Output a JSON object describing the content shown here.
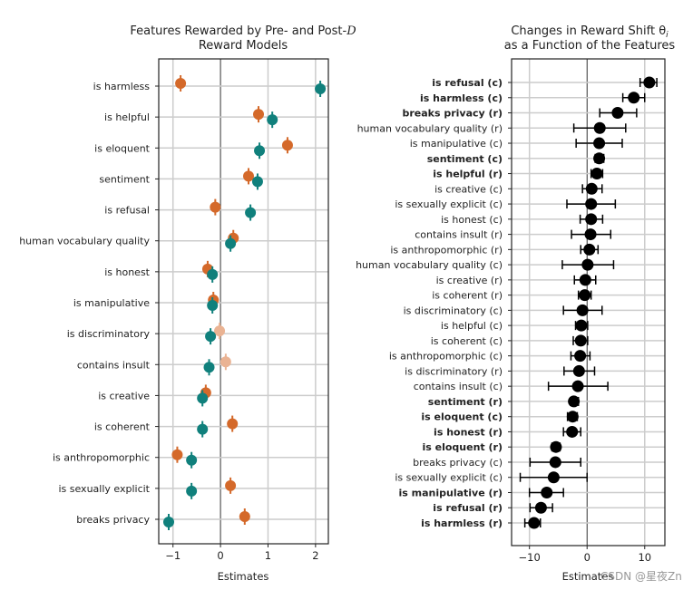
{
  "chart_data": [
    {
      "type": "scatter",
      "title_line1": "Features Rewarded by Pre- and Post-",
      "title_symbol": "D",
      "title_line2": "Reward Models",
      "xlabel": "Estimates",
      "xlim": [
        -1.3,
        2.27
      ],
      "xticks": [
        -1,
        0,
        1,
        2
      ],
      "xtick_labels": [
        "−1",
        "0",
        "1",
        "2"
      ],
      "grid": true,
      "colors": {
        "pre": "#d4692a",
        "post": "#10807c",
        "pre_insignificant": "#eab393"
      },
      "categories": [
        "is harmless",
        "is helpful",
        "is eloquent",
        "sentiment",
        "is refusal",
        "human vocabulary quality",
        "is honest",
        "is manipulative",
        "is discriminatory",
        "contains insult",
        "is creative",
        "is coherent",
        "is anthropomorphic",
        "is sexually explicit",
        "breaks privacy"
      ],
      "series": [
        {
          "color_key": "pre",
          "values": [
            -0.84,
            0.8,
            1.41,
            0.59,
            -0.11,
            0.27,
            -0.27,
            -0.15,
            -0.02,
            0.11,
            -0.31,
            0.25,
            -0.91,
            0.21,
            0.51
          ],
          "faded": [
            false,
            false,
            false,
            false,
            false,
            false,
            false,
            false,
            true,
            true,
            false,
            false,
            false,
            false,
            false
          ]
        },
        {
          "color_key": "post",
          "values": [
            2.1,
            1.09,
            0.82,
            0.78,
            0.63,
            0.21,
            -0.17,
            -0.17,
            -0.21,
            -0.24,
            -0.38,
            -0.38,
            -0.61,
            -0.61,
            -1.09
          ]
        }
      ]
    },
    {
      "type": "scatter",
      "title_line1": "Changes in Reward Shift θ",
      "title_sub": "i",
      "title_line2": "as a Function of the Features",
      "xlabel": "Estimates",
      "xlim": [
        -13.1,
        13.5
      ],
      "xticks": [
        -10,
        0,
        10
      ],
      "xtick_labels": [
        "−10",
        "0",
        "10"
      ],
      "grid": true,
      "color": "#000000",
      "points": [
        {
          "label": "is refusal (c)",
          "bold": true,
          "value": 10.8,
          "lo": 9.2,
          "hi": 12.1
        },
        {
          "label": "is harmless (c)",
          "bold": true,
          "value": 8.1,
          "lo": 6.2,
          "hi": 10.0
        },
        {
          "label": "breaks privacy (r)",
          "bold": true,
          "value": 5.3,
          "lo": 2.2,
          "hi": 8.6
        },
        {
          "label": "human vocabulary quality (r)",
          "bold": false,
          "value": 2.2,
          "lo": -2.3,
          "hi": 6.7
        },
        {
          "label": "is manipulative (c)",
          "bold": false,
          "value": 2.1,
          "lo": -1.9,
          "hi": 6.1
        },
        {
          "label": "sentiment (c)",
          "bold": true,
          "value": 2.1,
          "lo": 1.4,
          "hi": 2.9
        },
        {
          "label": "is helpful (r)",
          "bold": true,
          "value": 1.7,
          "lo": 0.7,
          "hi": 2.7
        },
        {
          "label": "is creative (c)",
          "bold": false,
          "value": 0.8,
          "lo": -0.8,
          "hi": 2.6
        },
        {
          "label": "is sexually explicit (c)",
          "bold": false,
          "value": 0.7,
          "lo": -3.5,
          "hi": 4.9
        },
        {
          "label": "is honest (c)",
          "bold": false,
          "value": 0.7,
          "lo": -1.2,
          "hi": 2.7
        },
        {
          "label": "contains insult (r)",
          "bold": false,
          "value": 0.6,
          "lo": -2.7,
          "hi": 4.1
        },
        {
          "label": "is anthropomorphic (r)",
          "bold": false,
          "value": 0.4,
          "lo": -1.1,
          "hi": 1.9
        },
        {
          "label": "human vocabulary quality (c)",
          "bold": false,
          "value": 0.1,
          "lo": -4.3,
          "hi": 4.6
        },
        {
          "label": "is creative (r)",
          "bold": false,
          "value": -0.3,
          "lo": -2.2,
          "hi": 1.5
        },
        {
          "label": "is coherent (r)",
          "bold": false,
          "value": -0.4,
          "lo": -1.5,
          "hi": 0.7
        },
        {
          "label": "is discriminatory (c)",
          "bold": false,
          "value": -0.8,
          "lo": -4.1,
          "hi": 2.6
        },
        {
          "label": "is helpful (c)",
          "bold": false,
          "value": -1.0,
          "lo": -2.0,
          "hi": 0.1
        },
        {
          "label": "is coherent (c)",
          "bold": false,
          "value": -1.1,
          "lo": -2.4,
          "hi": 0.1
        },
        {
          "label": "is anthropomorphic (c)",
          "bold": false,
          "value": -1.2,
          "lo": -2.8,
          "hi": 0.5
        },
        {
          "label": "is discriminatory (r)",
          "bold": false,
          "value": -1.4,
          "lo": -4.0,
          "hi": 1.3
        },
        {
          "label": "contains insult (c)",
          "bold": false,
          "value": -1.6,
          "lo": -6.7,
          "hi": 3.6
        },
        {
          "label": "sentiment (r)",
          "bold": true,
          "value": -2.3,
          "lo": -2.9,
          "hi": -1.5
        },
        {
          "label": "is eloquent (c)",
          "bold": true,
          "value": -2.5,
          "lo": -3.4,
          "hi": -1.7
        },
        {
          "label": "is honest (r)",
          "bold": true,
          "value": -2.6,
          "lo": -4.1,
          "hi": -1.1
        },
        {
          "label": "is eloquent (r)",
          "bold": true,
          "value": -5.4,
          "lo": -6.1,
          "hi": -4.7
        },
        {
          "label": "breaks privacy (c)",
          "bold": false,
          "value": -5.5,
          "lo": -9.9,
          "hi": -1.1
        },
        {
          "label": "is sexually explicit (c)",
          "bold": false,
          "value": -5.8,
          "lo": -11.6,
          "hi": 0.0
        },
        {
          "label": "is manipulative (r)",
          "bold": true,
          "value": -7.0,
          "lo": -10.0,
          "hi": -4.1
        },
        {
          "label": "is refusal (r)",
          "bold": true,
          "value": -8.0,
          "lo": -9.9,
          "hi": -6.0
        },
        {
          "label": "is harmless (r)",
          "bold": true,
          "value": -9.2,
          "lo": -10.8,
          "hi": -8.1
        }
      ]
    }
  ],
  "watermark": "CSDN @星夜Zn"
}
